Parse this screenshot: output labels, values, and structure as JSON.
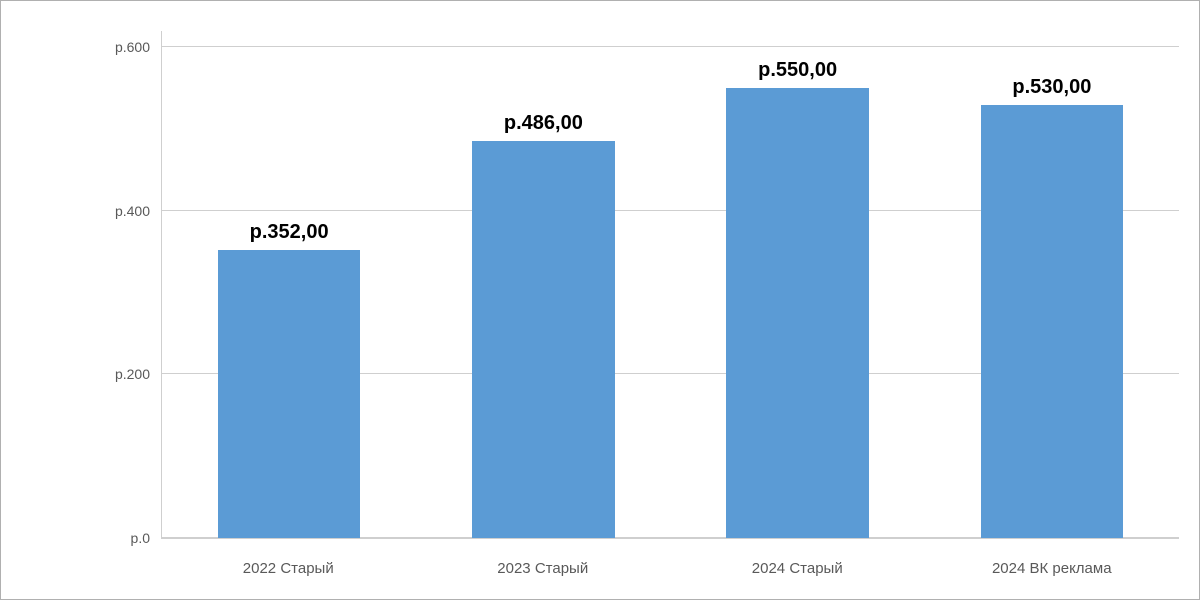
{
  "chart": {
    "type": "bar",
    "categories": [
      "2022 Старый",
      "2023 Старый",
      "2024 Старый",
      "2024 ВК реклама"
    ],
    "values": [
      352,
      486,
      550,
      530
    ],
    "value_labels": [
      "р.352,00",
      "р.486,00",
      "р.550,00",
      "р.530,00"
    ],
    "bar_color": "#5b9bd5",
    "bar_width_pct": 56,
    "ylim_min": 0,
    "ylim_max": 620,
    "ytick_values": [
      0,
      200,
      400,
      600
    ],
    "ytick_labels": [
      "р.0",
      "р.200",
      "р.400",
      "р.600"
    ],
    "grid_color": "#cfcfcf",
    "background_color": "#ffffff",
    "border_color": "#b0b0b0",
    "tick_label_color": "#595959",
    "tick_label_fontsize": 14,
    "xlabel_fontsize": 15,
    "value_label_fontsize": 20,
    "value_label_fontweight": "600",
    "value_label_color": "#000000"
  }
}
